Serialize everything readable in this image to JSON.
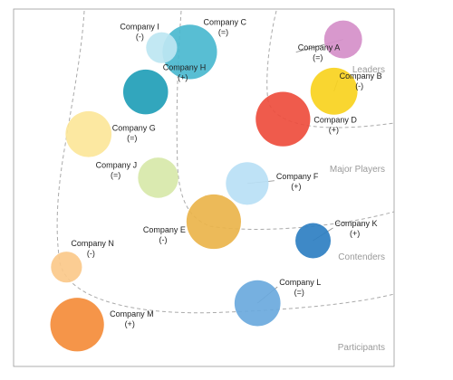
{
  "chart_data": {
    "type": "bubble",
    "title": "",
    "zones": [
      "Leaders",
      "Major Players",
      "Contenders",
      "Participants"
    ],
    "companies": [
      {
        "name": "Company A",
        "change": "(=)",
        "x": 0.866,
        "y": 0.915,
        "size": 0.15,
        "color": "#D58FC9"
      },
      {
        "name": "Company B",
        "change": "(-)",
        "x": 0.842,
        "y": 0.77,
        "size": 0.23,
        "color": "#F9D21E"
      },
      {
        "name": "Company C",
        "change": "(=)",
        "x": 0.463,
        "y": 0.88,
        "size": 0.31,
        "color": "#4AB8CF"
      },
      {
        "name": "Company D",
        "change": "(+)",
        "x": 0.708,
        "y": 0.692,
        "size": 0.31,
        "color": "#EE4D3D"
      },
      {
        "name": "Company E",
        "change": "(-)",
        "x": 0.526,
        "y": 0.405,
        "size": 0.31,
        "color": "#EAB44B"
      },
      {
        "name": "Company F",
        "change": "(+)",
        "x": 0.614,
        "y": 0.512,
        "size": 0.19,
        "color": "#B9E0F5"
      },
      {
        "name": "Company G",
        "change": "(=)",
        "x": 0.197,
        "y": 0.65,
        "size": 0.22,
        "color": "#FCE699"
      },
      {
        "name": "Company H",
        "change": "(+)",
        "x": 0.347,
        "y": 0.768,
        "size": 0.21,
        "color": "#219EB7"
      },
      {
        "name": "Company I",
        "change": "(-)",
        "x": 0.389,
        "y": 0.892,
        "size": 0.1,
        "color": "#BDE6F2"
      },
      {
        "name": "Company J",
        "change": "(=)",
        "x": 0.38,
        "y": 0.528,
        "size": 0.17,
        "color": "#D7E8A9"
      },
      {
        "name": "Company K",
        "change": "(+)",
        "x": 0.787,
        "y": 0.352,
        "size": 0.13,
        "color": "#2E7FC2"
      },
      {
        "name": "Company L",
        "change": "(=)",
        "x": 0.641,
        "y": 0.177,
        "size": 0.22,
        "color": "#6AA9DD"
      },
      {
        "name": "Company M",
        "change": "(+)",
        "x": 0.167,
        "y": 0.117,
        "size": 0.3,
        "color": "#F48C3A"
      },
      {
        "name": "Company N",
        "change": "(-)",
        "x": 0.139,
        "y": 0.278,
        "size": 0.1,
        "color": "#FBC98A"
      }
    ]
  }
}
